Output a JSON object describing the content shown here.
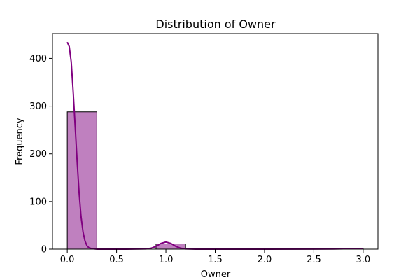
{
  "chart_data": {
    "type": "bar",
    "title": "Distribution of Owner",
    "xlabel": "Owner",
    "ylabel": "Frequency",
    "xlim": [
      -0.15,
      3.15
    ],
    "ylim": [
      0,
      452
    ],
    "xticks": [
      0.0,
      0.5,
      1.0,
      1.5,
      2.0,
      2.5,
      3.0
    ],
    "xtick_labels": [
      "0.0",
      "0.5",
      "1.0",
      "1.5",
      "2.0",
      "2.5",
      "3.0"
    ],
    "yticks": [
      0,
      100,
      200,
      300,
      400
    ],
    "ytick_labels": [
      "0",
      "100",
      "200",
      "300",
      "400"
    ],
    "grid": false,
    "legend": "none",
    "bins": [
      {
        "x0": 0.0,
        "x1": 0.3,
        "value": 288
      },
      {
        "x0": 0.3,
        "x1": 0.6,
        "value": 0
      },
      {
        "x0": 0.6,
        "x1": 0.9,
        "value": 0
      },
      {
        "x0": 0.9,
        "x1": 1.2,
        "value": 11
      },
      {
        "x0": 1.2,
        "x1": 1.5,
        "value": 0
      },
      {
        "x0": 1.5,
        "x1": 1.8,
        "value": 0
      },
      {
        "x0": 1.8,
        "x1": 2.1,
        "value": 0
      },
      {
        "x0": 2.1,
        "x1": 2.4,
        "value": 0
      },
      {
        "x0": 2.4,
        "x1": 2.7,
        "value": 0
      },
      {
        "x0": 2.7,
        "x1": 3.0,
        "value": 1
      }
    ],
    "kde": {
      "x": [
        0.0,
        0.02,
        0.04,
        0.06,
        0.08,
        0.1,
        0.12,
        0.14,
        0.16,
        0.18,
        0.2,
        0.22,
        0.25,
        0.3,
        0.4,
        0.6,
        0.8,
        0.85,
        0.9,
        0.95,
        1.0,
        1.05,
        1.1,
        1.15,
        1.2,
        1.3,
        1.5,
        2.0,
        2.5,
        2.7,
        2.8,
        2.9,
        2.95,
        3.0
      ],
      "y": [
        434,
        425,
        393,
        330,
        258,
        185,
        118,
        68,
        36,
        17,
        7,
        3,
        1,
        0,
        0,
        0,
        0.5,
        2,
        6,
        12,
        15,
        12,
        6,
        2,
        0.5,
        0,
        0,
        0,
        0.1,
        0.3,
        0.7,
        1.2,
        1.4,
        1.4
      ]
    },
    "colors": {
      "bar_fill": "#bf80bf",
      "bar_edge": "#000000",
      "kde_line": "#800080"
    }
  }
}
